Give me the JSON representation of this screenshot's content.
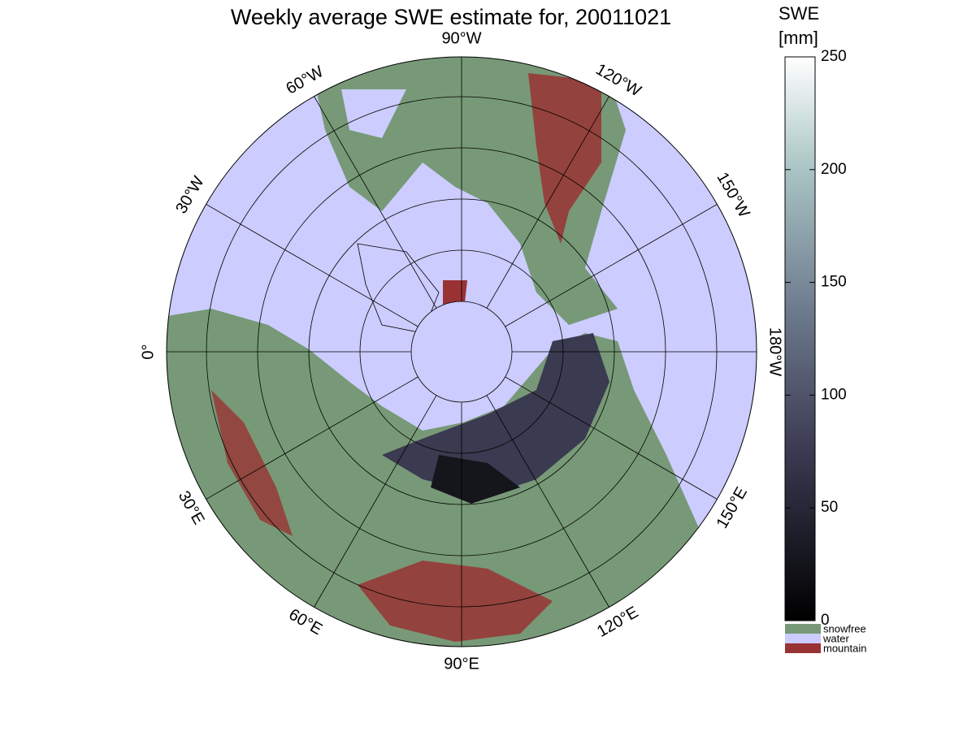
{
  "title": "Weekly average SWE estimate for, 20011021",
  "longitude_labels": [
    "90°W",
    "120°W",
    "150°W",
    "180°W",
    "150°E",
    "120°E",
    "90°E",
    "60°E",
    "30°E",
    "0°",
    "30°W",
    "60°W"
  ],
  "colorbar": {
    "title": [
      "SWE",
      "[mm]"
    ],
    "lim": [
      0,
      250
    ],
    "ticks": [
      0,
      50,
      100,
      150,
      200,
      250
    ]
  },
  "legend": [
    {
      "name": "snowfree",
      "color": "#779977"
    },
    {
      "name": "water",
      "color": "#ccccff"
    },
    {
      "name": "mountain",
      "color": "#993333"
    }
  ]
}
